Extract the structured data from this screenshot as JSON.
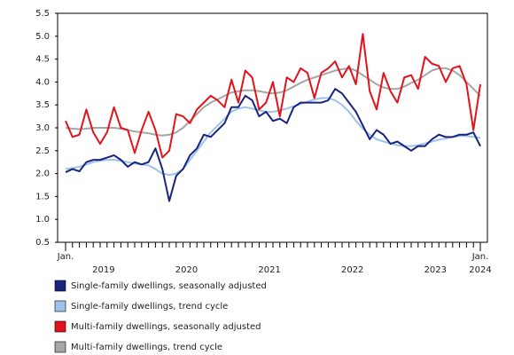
{
  "chart_data": {
    "type": "line",
    "categories": [
      "Jan.",
      null,
      null,
      null,
      null,
      null,
      null,
      null,
      null,
      null,
      null,
      null,
      null,
      null,
      null,
      null,
      null,
      null,
      null,
      null,
      null,
      null,
      null,
      null,
      null,
      null,
      null,
      null,
      null,
      null,
      null,
      null,
      null,
      null,
      null,
      null,
      null,
      null,
      null,
      null,
      null,
      null,
      null,
      null,
      null,
      null,
      null,
      null,
      null,
      null,
      null,
      null,
      null,
      null,
      null,
      null,
      null,
      null,
      null,
      null,
      "Jan."
    ],
    "years": [
      "2019",
      "2020",
      "2021",
      "2022",
      "2023",
      "2024"
    ],
    "ylim": [
      0.5,
      5.5
    ],
    "yticks": [
      0.5,
      {
        "value": 1,
        "label": "1.0"
      },
      1.5,
      {
        "value": 2,
        "label": "2.0"
      },
      2.5,
      {
        "value": 3,
        "label": "3.0"
      },
      3.5,
      {
        "value": 4,
        "label": "4.0"
      },
      4.5,
      {
        "value": 5,
        "label": "5.0"
      },
      5.5
    ],
    "series": [
      {
        "name": "Single-family dwellings, seasonally adjusted",
        "color": "#1a237e",
        "values": [
          2.03,
          2.1,
          2.05,
          2.25,
          2.3,
          2.3,
          2.35,
          2.4,
          2.3,
          2.15,
          2.25,
          2.2,
          2.25,
          2.55,
          2.1,
          1.4,
          1.95,
          2.1,
          2.4,
          2.55,
          2.85,
          2.8,
          2.95,
          3.1,
          3.45,
          3.45,
          3.7,
          3.6,
          3.25,
          3.35,
          3.15,
          3.2,
          3.1,
          3.45,
          3.55,
          3.55,
          3.55,
          3.55,
          3.6,
          3.85,
          3.75,
          3.55,
          3.35,
          3.05,
          2.75,
          2.95,
          2.85,
          2.65,
          2.7,
          2.6,
          2.5,
          2.6,
          2.6,
          2.75,
          2.85,
          2.8,
          2.8,
          2.85,
          2.85,
          2.9,
          2.6
        ]
      },
      {
        "name": "Single-family dwellings, trend cycle",
        "color": "#9cc3ea",
        "values": [
          2.1,
          2.12,
          2.15,
          2.2,
          2.25,
          2.28,
          2.3,
          2.3,
          2.28,
          2.25,
          2.22,
          2.2,
          2.18,
          2.1,
          2.0,
          1.97,
          2.0,
          2.1,
          2.3,
          2.5,
          2.7,
          2.9,
          3.05,
          3.2,
          3.35,
          3.42,
          3.45,
          3.42,
          3.38,
          3.35,
          3.35,
          3.38,
          3.42,
          3.47,
          3.52,
          3.57,
          3.62,
          3.65,
          3.65,
          3.6,
          3.5,
          3.35,
          3.15,
          2.98,
          2.85,
          2.75,
          2.7,
          2.66,
          2.62,
          2.6,
          2.6,
          2.62,
          2.66,
          2.7,
          2.74,
          2.77,
          2.8,
          2.82,
          2.82,
          2.8,
          2.78
        ]
      },
      {
        "name": "Multi-family dwellings, seasonally adjusted",
        "color": "#e3131b",
        "values": [
          3.15,
          2.8,
          2.85,
          3.4,
          2.9,
          2.65,
          2.9,
          3.45,
          3.0,
          2.95,
          2.45,
          2.95,
          3.35,
          2.95,
          2.35,
          2.5,
          3.3,
          3.25,
          3.1,
          3.4,
          3.55,
          3.7,
          3.6,
          3.45,
          4.05,
          3.55,
          4.25,
          4.1,
          3.4,
          3.55,
          4.0,
          3.25,
          4.1,
          4.0,
          4.3,
          4.2,
          3.65,
          4.2,
          4.3,
          4.45,
          4.1,
          4.35,
          3.95,
          5.05,
          3.8,
          3.4,
          4.2,
          3.8,
          3.55,
          4.1,
          4.15,
          3.85,
          4.55,
          4.4,
          4.35,
          4.0,
          4.3,
          4.35,
          3.95,
          2.95,
          3.95
        ]
      },
      {
        "name": "Multi-family dwellings, trend cycle",
        "color": "#a6a6a6",
        "values": [
          3.0,
          2.98,
          2.97,
          2.98,
          3.0,
          3.0,
          3.0,
          3.0,
          2.98,
          2.95,
          2.92,
          2.9,
          2.88,
          2.85,
          2.83,
          2.85,
          2.9,
          3.0,
          3.15,
          3.3,
          3.45,
          3.55,
          3.62,
          3.7,
          3.77,
          3.8,
          3.82,
          3.82,
          3.8,
          3.77,
          3.75,
          3.77,
          3.82,
          3.9,
          3.98,
          4.05,
          4.1,
          4.15,
          4.2,
          4.25,
          4.28,
          4.3,
          4.25,
          4.15,
          4.05,
          3.95,
          3.88,
          3.85,
          3.85,
          3.9,
          3.98,
          4.05,
          4.15,
          4.25,
          4.3,
          4.3,
          4.25,
          4.15,
          4.0,
          3.85,
          3.7
        ]
      }
    ]
  }
}
